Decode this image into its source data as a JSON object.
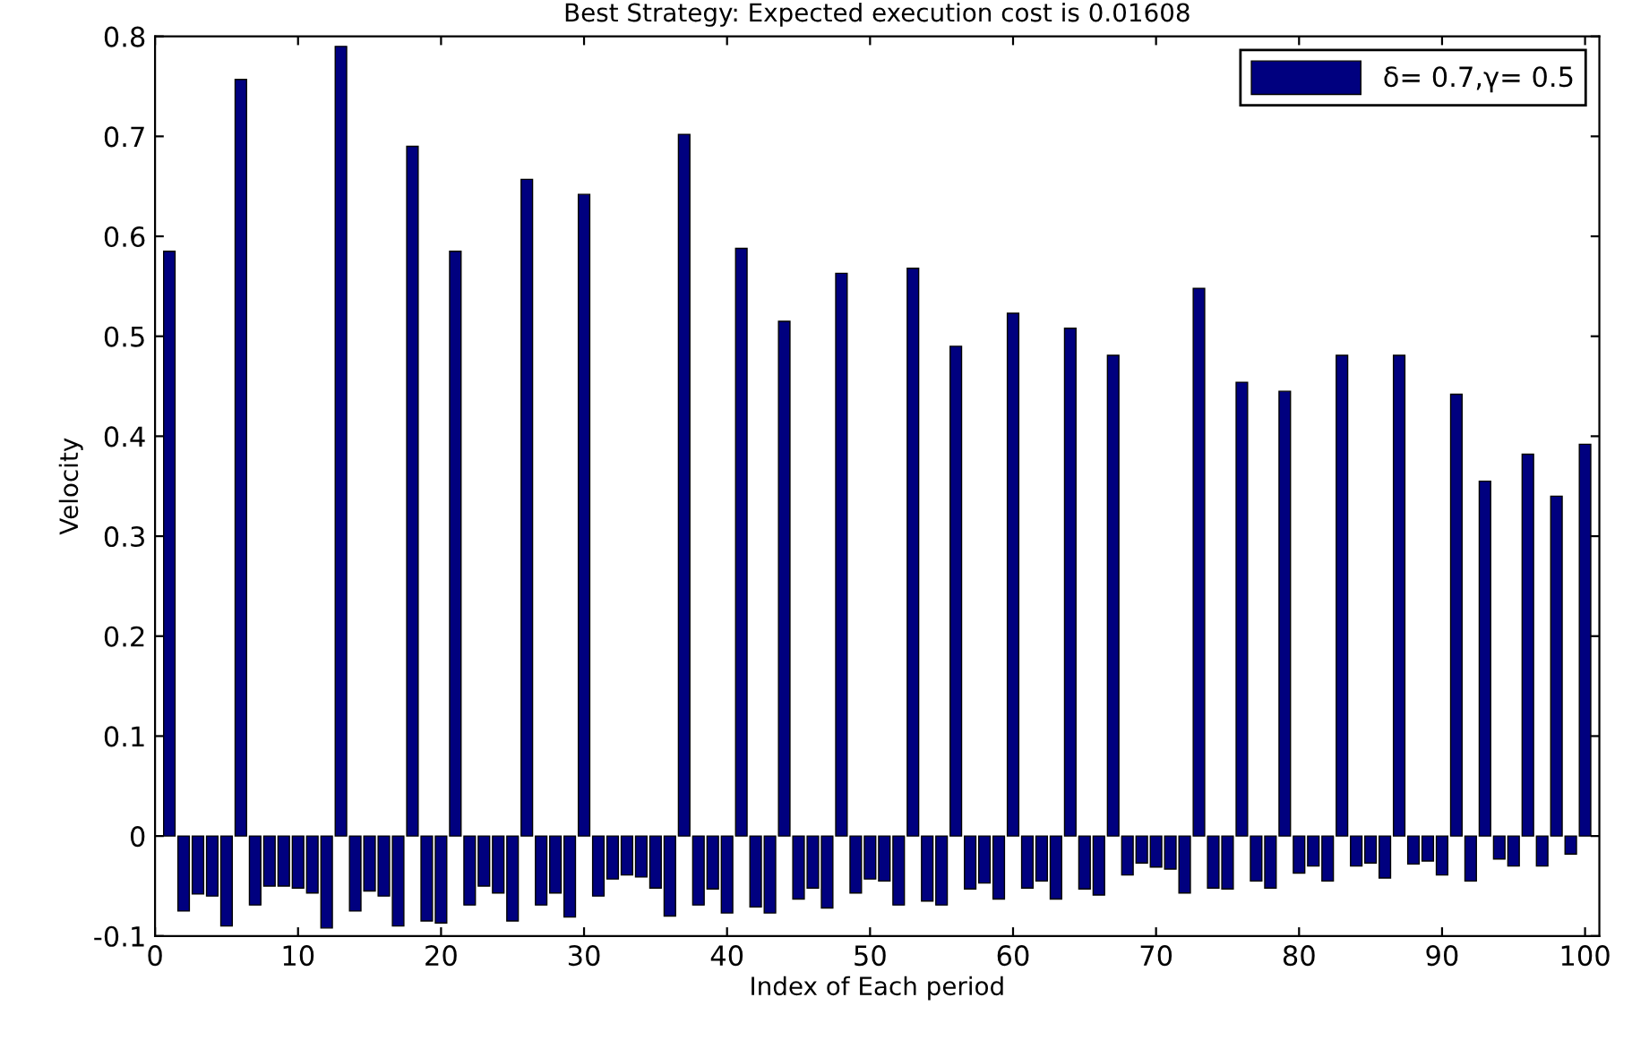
{
  "chart_data": {
    "type": "bar",
    "title": "Best Strategy: Expected execution cost is 0.01608",
    "xlabel": "Index of Each period",
    "ylabel": "Velocity",
    "x": [
      1,
      2,
      3,
      4,
      5,
      6,
      7,
      8,
      9,
      10,
      11,
      12,
      13,
      14,
      15,
      16,
      17,
      18,
      19,
      20,
      21,
      22,
      23,
      24,
      25,
      26,
      27,
      28,
      29,
      30,
      31,
      32,
      33,
      34,
      35,
      36,
      37,
      38,
      39,
      40,
      41,
      42,
      43,
      44,
      45,
      46,
      47,
      48,
      49,
      50,
      51,
      52,
      53,
      54,
      55,
      56,
      57,
      58,
      59,
      60,
      61,
      62,
      63,
      64,
      65,
      66,
      67,
      68,
      69,
      70,
      71,
      72,
      73,
      74,
      75,
      76,
      77,
      78,
      79,
      80,
      81,
      82,
      83,
      84,
      85,
      86,
      87,
      88,
      89,
      90,
      91,
      92,
      93,
      94,
      95,
      96,
      97,
      98,
      99,
      100
    ],
    "series": [
      {
        "name": "δ= 0.7,γ= 0.5",
        "color": "#00007f",
        "values": [
          0.585,
          -0.075,
          -0.058,
          -0.06,
          -0.09,
          0.757,
          -0.069,
          -0.05,
          -0.05,
          -0.052,
          -0.057,
          -0.092,
          0.79,
          -0.075,
          -0.055,
          -0.06,
          -0.09,
          0.69,
          -0.085,
          -0.087,
          0.585,
          -0.069,
          -0.05,
          -0.057,
          -0.085,
          0.657,
          -0.069,
          -0.057,
          -0.081,
          0.642,
          -0.06,
          -0.043,
          -0.039,
          -0.041,
          -0.052,
          -0.08,
          0.702,
          -0.069,
          -0.053,
          -0.077,
          0.588,
          -0.071,
          -0.077,
          0.515,
          -0.063,
          -0.052,
          -0.072,
          0.563,
          -0.057,
          -0.043,
          -0.045,
          -0.069,
          0.568,
          -0.065,
          -0.069,
          0.49,
          -0.053,
          -0.047,
          -0.063,
          0.523,
          -0.052,
          -0.045,
          -0.063,
          0.508,
          -0.053,
          -0.059,
          0.481,
          -0.039,
          -0.027,
          -0.031,
          -0.033,
          -0.057,
          0.548,
          -0.052,
          -0.053,
          0.454,
          -0.045,
          -0.052,
          0.445,
          -0.037,
          -0.03,
          -0.045,
          0.481,
          -0.03,
          -0.027,
          -0.042,
          0.481,
          -0.028,
          -0.025,
          -0.039,
          0.442,
          -0.045,
          0.355,
          -0.023,
          -0.03,
          0.382,
          -0.03,
          0.34,
          -0.018,
          0.392
        ]
      }
    ],
    "xlim": [
      0,
      101
    ],
    "xticks": [
      0,
      10,
      20,
      30,
      40,
      50,
      60,
      70,
      80,
      90,
      100
    ],
    "ylim": [
      -0.1,
      0.8
    ],
    "yticks": [
      -0.1,
      0,
      0.1,
      0.2,
      0.3,
      0.4,
      0.5,
      0.6,
      0.7,
      0.8
    ],
    "legend": "top right",
    "grid": false
  }
}
